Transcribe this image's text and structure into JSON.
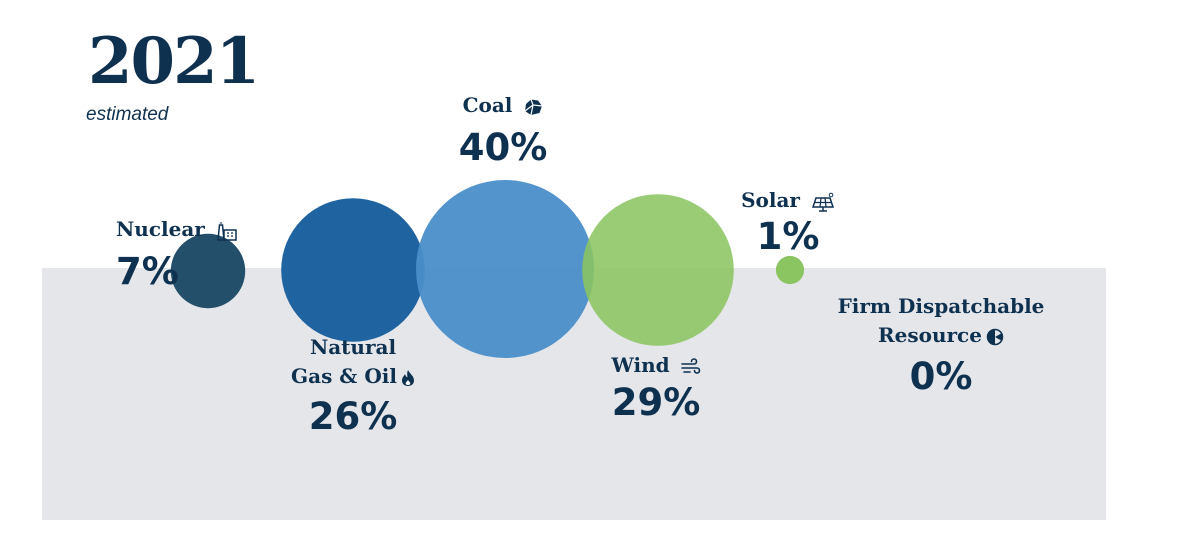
{
  "year": "2021",
  "subtitle": "estimated",
  "colors": {
    "Nuclear": "#234f6b",
    "Natural Gas & Oil": "#1f64a1",
    "Coal": "#4a8ec9",
    "Wind": "#8bc561",
    "Solar": "#8bc561",
    "Firm Dispatchable Resource": "#0f3150"
  },
  "icons": {
    "Nuclear": "power-plant-icon",
    "Natural Gas & Oil": "flame-icon",
    "Coal": "coal-icon",
    "Wind": "wind-icon",
    "Solar": "solar-panel-icon",
    "Firm Dispatchable Resource": "pie-icon"
  },
  "chart_data": {
    "type": "bubble",
    "categories": [
      "Nuclear",
      "Natural Gas & Oil",
      "Coal",
      "Wind",
      "Solar",
      "Firm Dispatchable Resource"
    ],
    "values": [
      7,
      26,
      40,
      29,
      1,
      0
    ],
    "labels": [
      "7%",
      "26%",
      "40%",
      "29%",
      "1%",
      "0%"
    ],
    "label_lines": [
      [
        "Nuclear"
      ],
      [
        "Natural",
        "Gas & Oil"
      ],
      [
        "Coal"
      ],
      [
        "Wind"
      ],
      [
        "Solar"
      ],
      [
        "Firm Dispatchable",
        "Resource"
      ]
    ],
    "unit": "%"
  }
}
